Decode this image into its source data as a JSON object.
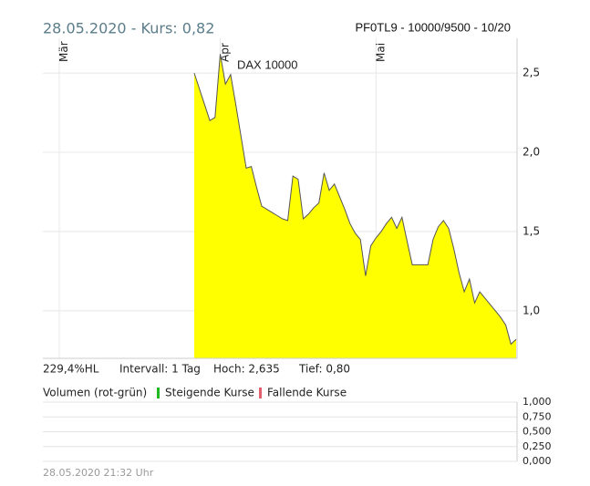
{
  "header": {
    "left": "28.05.2020  -  Kurs: 0,82",
    "right": "PF0TL9 - 10000/9500 - 10/20"
  },
  "chart_data": [
    {
      "type": "area",
      "annotation": "DAX 10000",
      "color": "#ffff00",
      "line_color": "#555555",
      "categories": [
        "Mär",
        null,
        null,
        null,
        null,
        null,
        null,
        null,
        null,
        null,
        null,
        null,
        null,
        null,
        null,
        null,
        null,
        null,
        null,
        null,
        null,
        null,
        null,
        null,
        null,
        null,
        null,
        null,
        null,
        null,
        null,
        "Apr",
        null,
        null,
        null,
        null,
        null,
        null,
        null,
        null,
        null,
        null,
        null,
        null,
        null,
        null,
        null,
        null,
        null,
        null,
        null,
        null,
        null,
        null,
        null,
        null,
        null,
        null,
        null,
        null,
        null,
        "Mai",
        null,
        null,
        null,
        null,
        null,
        null,
        null,
        null,
        null,
        null,
        null,
        null,
        null,
        null,
        null,
        null,
        null,
        null,
        null,
        null,
        null,
        null,
        null,
        null,
        null,
        null,
        null
      ],
      "values": [
        null,
        null,
        null,
        null,
        null,
        null,
        null,
        null,
        null,
        null,
        null,
        null,
        null,
        null,
        null,
        null,
        null,
        null,
        null,
        null,
        null,
        null,
        null,
        null,
        null,
        null,
        2.5,
        2.4,
        2.3,
        2.2,
        2.22,
        2.62,
        2.43,
        2.49,
        2.3,
        2.1,
        1.9,
        1.91,
        1.78,
        1.66,
        1.64,
        1.62,
        1.6,
        1.58,
        1.57,
        1.85,
        1.83,
        1.58,
        1.61,
        1.65,
        1.68,
        1.87,
        1.76,
        1.8,
        1.72,
        1.64,
        1.55,
        1.49,
        1.45,
        1.22,
        1.41,
        1.46,
        1.5,
        1.55,
        1.59,
        1.52,
        1.59,
        1.44,
        1.29,
        1.29,
        1.29,
        1.29,
        1.45,
        1.53,
        1.57,
        1.52,
        1.39,
        1.24,
        1.12,
        1.2,
        1.05,
        1.12,
        1.08,
        1.04,
        1.0,
        0.96,
        0.91,
        0.79,
        0.82
      ],
      "ylim": [
        0.7,
        2.65
      ],
      "yticks": [
        {
          "value": 1.0,
          "label": "1,0"
        },
        {
          "value": 1.5,
          "label": "1,5"
        },
        {
          "value": 2.0,
          "label": "2,0"
        },
        {
          "value": 2.5,
          "label": "2,5"
        }
      ],
      "grid": true
    },
    {
      "type": "bar",
      "title": "Volumen (rot-grün)",
      "series": [
        {
          "name": "Steigende Kurse",
          "color": "#22b822"
        },
        {
          "name": "Fallende Kurse",
          "color": "#e0606e"
        }
      ],
      "ylim": [
        0,
        1
      ],
      "yticks": [
        {
          "value": 0,
          "label": "0,000"
        },
        {
          "value": 0.25,
          "label": "0,250"
        },
        {
          "value": 0.5,
          "label": "0,500"
        },
        {
          "value": 0.75,
          "label": "0,750"
        },
        {
          "value": 1,
          "label": "1,000"
        }
      ],
      "grid": true
    }
  ],
  "stats": [
    "229,4%HL",
    "Intervall: 1 Tag",
    "Hoch: 2,635",
    "Tief: 0,80"
  ],
  "footer": "28.05.2020 21:32 Uhr"
}
